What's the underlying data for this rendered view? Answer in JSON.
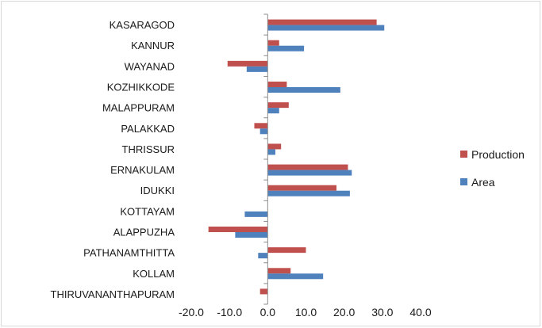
{
  "chart_data": {
    "type": "bar",
    "orientation": "horizontal",
    "categories": [
      "KASARAGOD",
      "KANNUR",
      "WAYANAD",
      "KOZHIKKODE",
      "MALAPPURAM",
      "PALAKKAD",
      "THRISSUR",
      "ERNAKULAM",
      "IDUKKI",
      "KOTTAYAM",
      "ALAPPUZHA",
      "PATHANAMTHITTA",
      "KOLLAM",
      "THIRUVANANTHAPURAM"
    ],
    "series": [
      {
        "name": "Production",
        "color": "#c0504d",
        "values": [
          28.5,
          3.0,
          -10.5,
          5.0,
          5.5,
          -3.5,
          3.5,
          21.0,
          18.0,
          0.0,
          -15.5,
          10.0,
          6.0,
          -2.0
        ]
      },
      {
        "name": "Area",
        "color": "#4f81bd",
        "values": [
          30.5,
          9.5,
          -5.5,
          19.0,
          3.0,
          -2.0,
          2.0,
          22.0,
          21.5,
          -6.0,
          -8.5,
          -2.5,
          14.5,
          0.0
        ]
      }
    ],
    "xlim": [
      -20,
      40
    ],
    "xticks": [
      -20,
      -10,
      0,
      10,
      20,
      30,
      40
    ],
    "xtick_labels": [
      "-20.0",
      "-10.0",
      "0.0",
      "10.0",
      "20.0",
      "30.0",
      "40.0"
    ],
    "grid": false,
    "legend_position": "right",
    "title": "",
    "xlabel": "",
    "ylabel": ""
  }
}
